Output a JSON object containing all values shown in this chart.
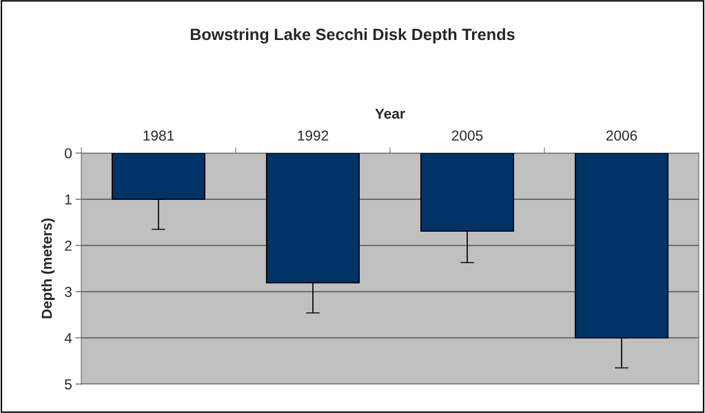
{
  "chart_data": {
    "type": "bar",
    "title": "Bowstring Lake Secchi Disk Depth Trends",
    "xlabel": "Year",
    "ylabel": "Depth (meters)",
    "categories": [
      "1981",
      "1992",
      "2005",
      "2006"
    ],
    "values": [
      1.0,
      2.81,
      1.69,
      4.0
    ],
    "errors": [
      [
        1.0,
        1.65
      ],
      [
        2.81,
        3.46
      ],
      [
        1.69,
        2.37
      ],
      [
        4.0,
        4.65
      ]
    ],
    "color": "#003366",
    "ylim": [
      5,
      0
    ],
    "yticks": [
      0,
      1,
      2,
      3,
      4,
      5
    ],
    "grid": "y",
    "legend": false
  }
}
